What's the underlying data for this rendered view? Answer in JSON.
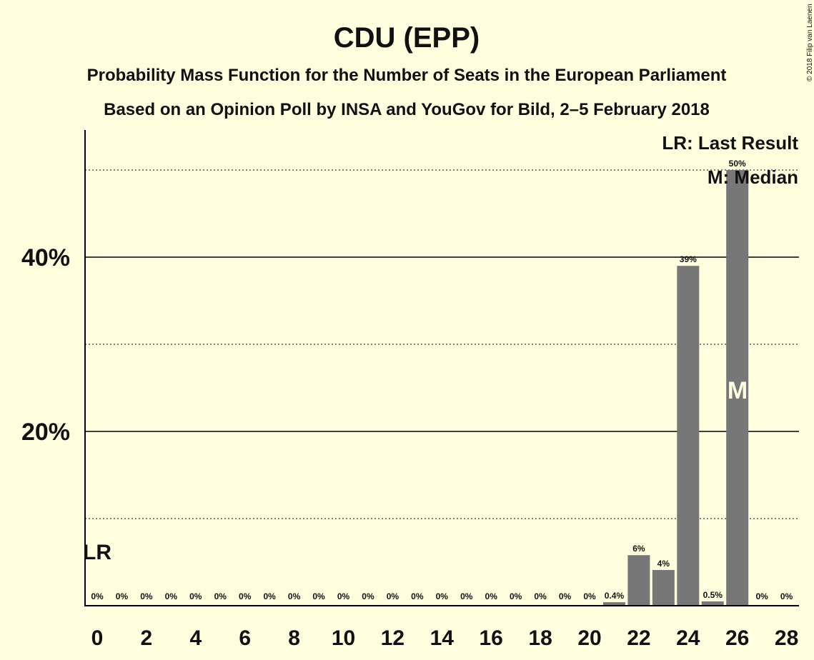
{
  "chart_data": {
    "type": "bar",
    "title": "CDU (EPP)",
    "subtitle": "Probability Mass Function for the Number of Seats in the European Parliament",
    "subtitle2": "Based on an Opinion Poll by INSA and YouGov for Bild, 2–5 February 2018",
    "copyright": "© 2018 Filip van Laenen",
    "categories": [
      0,
      1,
      2,
      3,
      4,
      5,
      6,
      7,
      8,
      9,
      10,
      11,
      12,
      13,
      14,
      15,
      16,
      17,
      18,
      19,
      20,
      21,
      22,
      23,
      24,
      25,
      26,
      27,
      28
    ],
    "values": [
      0,
      0,
      0,
      0,
      0,
      0,
      0,
      0,
      0,
      0,
      0,
      0,
      0,
      0,
      0,
      0,
      0,
      0,
      0,
      0,
      0,
      0.4,
      5.8,
      4.1,
      39,
      0.5,
      50,
      0,
      0
    ],
    "value_labels": [
      "0%",
      "0%",
      "0%",
      "0%",
      "0%",
      "0%",
      "0%",
      "0%",
      "0%",
      "0%",
      "0%",
      "0%",
      "0%",
      "0%",
      "0%",
      "0%",
      "0%",
      "0%",
      "0%",
      "0%",
      "0%",
      "0.4%",
      "6%",
      "4%",
      "39%",
      "0.5%",
      "50%",
      "0%",
      "0%"
    ],
    "x_tick_labels": [
      "0",
      "2",
      "4",
      "6",
      "8",
      "10",
      "12",
      "14",
      "16",
      "18",
      "20",
      "22",
      "24",
      "26",
      "28"
    ],
    "x_tick_values": [
      0,
      2,
      4,
      6,
      8,
      10,
      12,
      14,
      16,
      18,
      20,
      22,
      24,
      26,
      28
    ],
    "y_tick_labels": [
      "20%",
      "40%"
    ],
    "y_tick_values": [
      20,
      40
    ],
    "y_dotted_gridlines": [
      10,
      30,
      50
    ],
    "ylim": [
      0,
      54.5
    ],
    "last_result_seat": 0,
    "last_result_label": "LR",
    "median_seat": 26,
    "median_label": "M",
    "legend": [
      "LR: Last Result",
      "M: Median"
    ],
    "legend_position": "top-right",
    "colors": {
      "background": "#ffffe0",
      "bar": "#777777",
      "axis": "#000000",
      "median_text": "#ffffe0"
    }
  }
}
